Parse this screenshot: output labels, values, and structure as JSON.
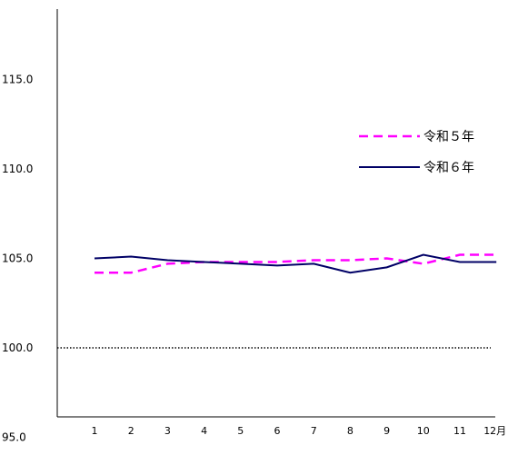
{
  "chart_data": {
    "type": "line",
    "categories": [
      "1",
      "2",
      "3",
      "4",
      "5",
      "6",
      "7",
      "8",
      "9",
      "10",
      "11",
      "12月"
    ],
    "series": [
      {
        "name": "令和５年",
        "color": "#ff00ff",
        "dash": true,
        "values": [
          104.2,
          104.2,
          104.7,
          104.8,
          104.8,
          104.8,
          104.9,
          104.9,
          105.0,
          104.7,
          105.2,
          105.2
        ]
      },
      {
        "name": "令和６年",
        "color": "#000066",
        "dash": false,
        "values": [
          105.0,
          105.1,
          104.9,
          104.8,
          104.7,
          104.6,
          104.7,
          104.2,
          104.5,
          105.2,
          104.8,
          104.8
        ]
      }
    ],
    "yticks": [
      "95.0",
      "100.0",
      "105.0",
      "110.0",
      "115.0"
    ],
    "ylim": [
      95.0,
      119.0
    ],
    "reference_line": 100.0,
    "legend_position": "right"
  }
}
